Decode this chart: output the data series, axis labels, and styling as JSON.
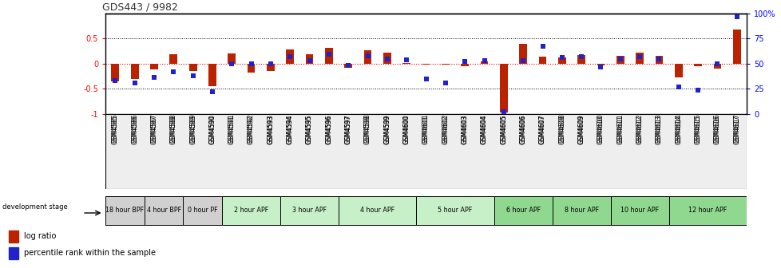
{
  "title": "GDS443 / 9982",
  "samples": [
    "GSM4585",
    "GSM4586",
    "GSM4587",
    "GSM4588",
    "GSM4589",
    "GSM4590",
    "GSM4591",
    "GSM4592",
    "GSM4593",
    "GSM4594",
    "GSM4595",
    "GSM4596",
    "GSM4597",
    "GSM4598",
    "GSM4599",
    "GSM4600",
    "GSM4601",
    "GSM4602",
    "GSM4603",
    "GSM4604",
    "GSM4605",
    "GSM4606",
    "GSM4607",
    "GSM4608",
    "GSM4609",
    "GSM4610",
    "GSM4611",
    "GSM4612",
    "GSM4613",
    "GSM4614",
    "GSM4615",
    "GSM4616",
    "GSM4617"
  ],
  "log_ratio": [
    -0.35,
    -0.3,
    -0.12,
    0.18,
    -0.14,
    -0.45,
    0.2,
    -0.17,
    -0.15,
    0.28,
    0.18,
    0.32,
    -0.08,
    0.27,
    0.22,
    0.02,
    -0.02,
    -0.02,
    -0.05,
    0.04,
    -0.97,
    0.4,
    0.14,
    0.13,
    0.17,
    -0.04,
    0.15,
    0.22,
    0.15,
    -0.27,
    -0.05,
    -0.1,
    0.68
  ],
  "percentile": [
    33,
    31,
    36,
    42,
    38,
    22,
    50,
    50,
    50,
    57,
    53,
    59,
    48,
    58,
    55,
    54,
    35,
    31,
    52,
    53,
    2,
    53,
    67,
    56,
    57,
    47,
    55,
    57,
    55,
    27,
    24,
    50,
    97
  ],
  "stage_groups": [
    {
      "label": "18 hour BPF",
      "start": 0,
      "end": 2,
      "color": "#d0d0d0"
    },
    {
      "label": "4 hour BPF",
      "start": 2,
      "end": 4,
      "color": "#d0d0d0"
    },
    {
      "label": "0 hour PF",
      "start": 4,
      "end": 6,
      "color": "#d0d0d0"
    },
    {
      "label": "2 hour APF",
      "start": 6,
      "end": 9,
      "color": "#c8f0c8"
    },
    {
      "label": "3 hour APF",
      "start": 9,
      "end": 12,
      "color": "#c8f0c8"
    },
    {
      "label": "4 hour APF",
      "start": 12,
      "end": 16,
      "color": "#c8f0c8"
    },
    {
      "label": "5 hour APF",
      "start": 16,
      "end": 20,
      "color": "#c8f0c8"
    },
    {
      "label": "6 hour APF",
      "start": 20,
      "end": 23,
      "color": "#90d890"
    },
    {
      "label": "8 hour APF",
      "start": 23,
      "end": 26,
      "color": "#90d890"
    },
    {
      "label": "10 hour APF",
      "start": 26,
      "end": 29,
      "color": "#90d890"
    },
    {
      "label": "12 hour APF",
      "start": 29,
      "end": 33,
      "color": "#90d890"
    }
  ],
  "bar_color": "#bb2200",
  "dot_color": "#2222cc",
  "bar_width": 0.4,
  "dot_size": 22,
  "ylim_left": [
    -1.0,
    1.0
  ],
  "ylim_right": [
    0,
    100
  ],
  "yticks_left": [
    -1.0,
    -0.5,
    0.0,
    0.5
  ],
  "ytick_labels_left": [
    "-1",
    "-0.5",
    "0",
    "0.5"
  ],
  "yticks_right": [
    0,
    25,
    50,
    75,
    100
  ],
  "ytick_labels_right": [
    "0",
    "25",
    "50",
    "75",
    "100%"
  ],
  "legend_log": "log ratio",
  "legend_pct": "percentile rank within the sample"
}
